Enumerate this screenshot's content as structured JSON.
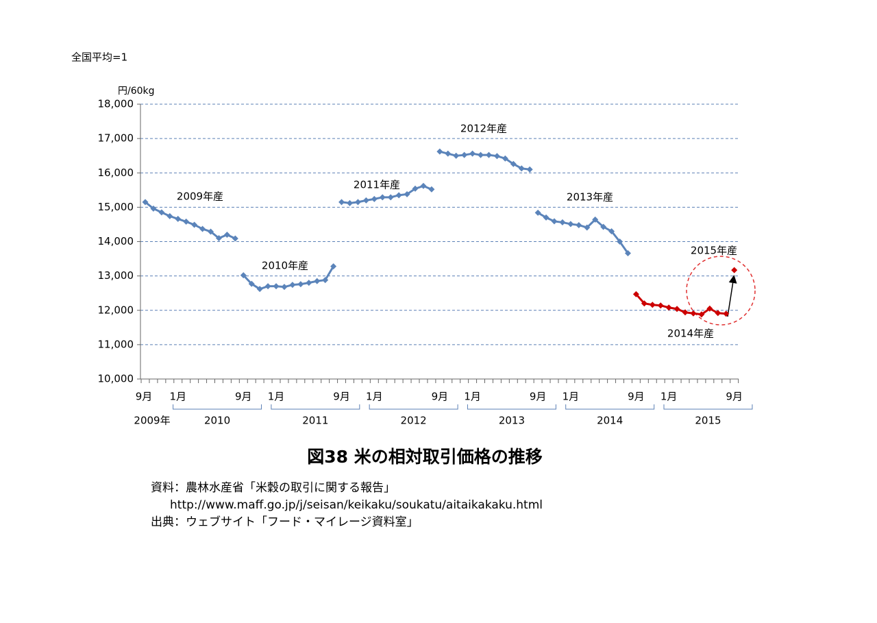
{
  "chart_data": {
    "type": "line",
    "note": "全国平均=1",
    "y_unit": "円/60kg",
    "title": "図38 米の相対取引価格の推移",
    "source": [
      "資料：農林水産省「米穀の取引に関する報告」",
      "http://www.maff.go.jp/j/seisan/keikaku/soukatu/aitaikakaku.html",
      "出典：ウェブサイト「フード・マイレージ資料室」"
    ],
    "categories": [
      "9月",
      null,
      null,
      null,
      "1月",
      null,
      null,
      null,
      null,
      null,
      null,
      null,
      "9月",
      null,
      null,
      null,
      "1月",
      null,
      null,
      null,
      null,
      null,
      null,
      null,
      "9月",
      null,
      null,
      null,
      "1月",
      null,
      null,
      null,
      null,
      null,
      null,
      null,
      "9月",
      null,
      null,
      null,
      "1月",
      null,
      null,
      null,
      null,
      null,
      null,
      null,
      "9月",
      null,
      null,
      null,
      "1月",
      null,
      null,
      null,
      null,
      null,
      null,
      null,
      "9月",
      null,
      null,
      null,
      "1月",
      null,
      null,
      null,
      null,
      null,
      null,
      null,
      "9月"
    ],
    "x_groups": [
      "2009年",
      "2010",
      "2011",
      "2012",
      "2013",
      "2014",
      "2015"
    ],
    "ylim": [
      10000,
      18000
    ],
    "yticks": [
      {
        "value": 10000,
        "label": "10,000"
      },
      {
        "value": 11000,
        "label": "11,000"
      },
      {
        "value": 12000,
        "label": "12,000"
      },
      {
        "value": 13000,
        "label": "13,000"
      },
      {
        "value": 14000,
        "label": "14,000"
      },
      {
        "value": 15000,
        "label": "15,000"
      },
      {
        "value": 16000,
        "label": "16,000"
      },
      {
        "value": 17000,
        "label": "17,000"
      },
      {
        "value": 18000,
        "label": "18,000"
      }
    ],
    "grid": true,
    "series": [
      {
        "name": "2009年産",
        "color": "#5b84ba",
        "values": [
          15150,
          14960,
          14850,
          14740,
          14660,
          14580,
          14490,
          14370,
          14290,
          14100,
          14200,
          14090,
          null,
          null,
          null,
          null,
          null,
          null,
          null,
          null,
          null,
          null,
          null,
          null,
          null,
          null,
          null,
          null,
          null,
          null,
          null,
          null,
          null,
          null,
          null,
          null,
          null,
          null,
          null,
          null,
          null,
          null,
          null,
          null,
          null,
          null,
          null,
          null,
          null,
          null,
          null,
          null,
          null,
          null,
          null,
          null,
          null,
          null,
          null,
          null,
          null,
          null,
          null,
          null,
          null,
          null,
          null,
          null,
          null,
          null,
          null,
          null,
          null
        ]
      },
      {
        "name": "2010年産",
        "color": "#5b84ba",
        "values": [
          null,
          null,
          null,
          null,
          null,
          null,
          null,
          null,
          null,
          null,
          null,
          null,
          13020,
          12770,
          12620,
          12700,
          12700,
          12680,
          12740,
          12760,
          12800,
          12850,
          12880,
          13280,
          null,
          null,
          null,
          null,
          null,
          null,
          null,
          null,
          null,
          null,
          null,
          null,
          null,
          null,
          null,
          null,
          null,
          null,
          null,
          null,
          null,
          null,
          null,
          null,
          null,
          null,
          null,
          null,
          null,
          null,
          null,
          null,
          null,
          null,
          null,
          null,
          null,
          null,
          null,
          null,
          null,
          null,
          null,
          null,
          null,
          null,
          null,
          null,
          null
        ]
      },
      {
        "name": "2011年産",
        "color": "#5b84ba",
        "values": [
          null,
          null,
          null,
          null,
          null,
          null,
          null,
          null,
          null,
          null,
          null,
          null,
          null,
          null,
          null,
          null,
          null,
          null,
          null,
          null,
          null,
          null,
          null,
          null,
          15150,
          15120,
          15150,
          15200,
          15240,
          15290,
          15290,
          15350,
          15380,
          15540,
          15620,
          15520,
          null,
          null,
          null,
          null,
          null,
          null,
          null,
          null,
          null,
          null,
          null,
          null,
          null,
          null,
          null,
          null,
          null,
          null,
          null,
          null,
          null,
          null,
          null,
          null,
          null,
          null,
          null,
          null,
          null,
          null,
          null,
          null,
          null,
          null,
          null,
          null,
          null
        ]
      },
      {
        "name": "2012年産",
        "color": "#5b84ba",
        "values": [
          null,
          null,
          null,
          null,
          null,
          null,
          null,
          null,
          null,
          null,
          null,
          null,
          null,
          null,
          null,
          null,
          null,
          null,
          null,
          null,
          null,
          null,
          null,
          null,
          null,
          null,
          null,
          null,
          null,
          null,
          null,
          null,
          null,
          null,
          null,
          null,
          16620,
          16560,
          16500,
          16520,
          16560,
          16520,
          16520,
          16490,
          16420,
          16260,
          16130,
          16100,
          null,
          null,
          null,
          null,
          null,
          null,
          null,
          null,
          null,
          null,
          null,
          null,
          null,
          null,
          null,
          null,
          null,
          null,
          null,
          null,
          null,
          null,
          null,
          null,
          null
        ]
      },
      {
        "name": "2013年産",
        "color": "#5b84ba",
        "values": [
          null,
          null,
          null,
          null,
          null,
          null,
          null,
          null,
          null,
          null,
          null,
          null,
          null,
          null,
          null,
          null,
          null,
          null,
          null,
          null,
          null,
          null,
          null,
          null,
          null,
          null,
          null,
          null,
          null,
          null,
          null,
          null,
          null,
          null,
          null,
          null,
          null,
          null,
          null,
          null,
          null,
          null,
          null,
          null,
          null,
          null,
          null,
          null,
          14840,
          14700,
          14590,
          14560,
          14510,
          14480,
          14410,
          14640,
          14430,
          14300,
          14000,
          13660,
          null,
          null,
          null,
          null,
          null,
          null,
          null,
          null,
          null,
          null,
          null,
          null,
          null
        ]
      },
      {
        "name": "2014年産",
        "color": "#cc0000",
        "values": [
          null,
          null,
          null,
          null,
          null,
          null,
          null,
          null,
          null,
          null,
          null,
          null,
          null,
          null,
          null,
          null,
          null,
          null,
          null,
          null,
          null,
          null,
          null,
          null,
          null,
          null,
          null,
          null,
          null,
          null,
          null,
          null,
          null,
          null,
          null,
          null,
          null,
          null,
          null,
          null,
          null,
          null,
          null,
          null,
          null,
          null,
          null,
          null,
          null,
          null,
          null,
          null,
          null,
          null,
          null,
          null,
          null,
          null,
          null,
          null,
          12470,
          12200,
          12160,
          12140,
          12080,
          12040,
          11940,
          11910,
          11880,
          12050,
          11920,
          11900,
          null
        ]
      },
      {
        "name": "2015年産",
        "color": "#cc0000",
        "values": [
          null,
          null,
          null,
          null,
          null,
          null,
          null,
          null,
          null,
          null,
          null,
          null,
          null,
          null,
          null,
          null,
          null,
          null,
          null,
          null,
          null,
          null,
          null,
          null,
          null,
          null,
          null,
          null,
          null,
          null,
          null,
          null,
          null,
          null,
          null,
          null,
          null,
          null,
          null,
          null,
          null,
          null,
          null,
          null,
          null,
          null,
          null,
          null,
          null,
          null,
          null,
          null,
          null,
          null,
          null,
          null,
          null,
          null,
          null,
          null,
          null,
          null,
          null,
          null,
          null,
          null,
          null,
          null,
          null,
          null,
          null,
          null,
          13170
        ]
      }
    ]
  }
}
